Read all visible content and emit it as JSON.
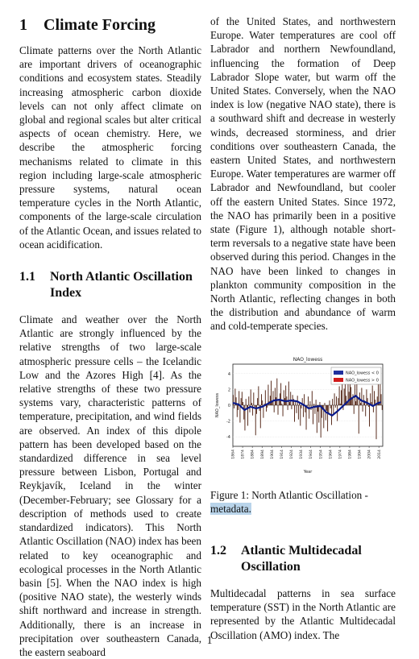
{
  "section": {
    "number": "1",
    "title": "Climate Forcing"
  },
  "left_intro": "Climate patterns over the North Atlantic are important drivers of oceanographic conditions and ecosystem states. Steadily increasing atmospheric carbon dioxide levels can not only affect climate on global and regional scales but alter critical aspects of ocean chemistry. Here, we describe the atmospheric forcing mechanisms related to climate in this region including large-scale atmospheric pressure systems, natural ocean temperature cycles in the North Atlantic, components of the large-scale circulation of the Atlantic Ocean, and issues related to ocean acidification.",
  "subsection_1": {
    "number": "1.1",
    "title": "North Atlantic Oscillation Index"
  },
  "left_body": "Climate and weather over the North Atlantic are strongly influenced by the relative strengths of two large-scale atmospheric pressure cells – the Icelandic Low and the Azores High [4]. As the relative strengths of these two pressure systems vary, characteristic patterns of temperature, precipitation, and wind fields are observed. An index of this dipole pattern has been developed based on the standardized difference in sea level pressure between Lisbon, Portugal and Reykjavík, Iceland in the winter (December-February; see Glossary for a description of methods used to create standardized indicators). This North Atlantic Oscillation (NAO) index has been related to key oceanographic and ecological processes in the North Atlantic basin [5]. When the NAO index is high (positive NAO state), the westerly winds shift northward and increase in strength. Additionally, there is an increase in precipitation over southeastern Canada, the eastern seaboard",
  "right_body": "of the United States, and northwestern Europe. Water temperatures are cool off Labrador and northern Newfoundland, influencing the formation of Deep Labrador Slope water, but warm off the United States. Conversely, when the NAO index is low (negative NAO state), there is a southward shift and decrease in westerly winds, decreased storminess, and drier conditions over southeastern Canada, the eastern United States, and northwestern Europe. Water temperatures are warmer off Labrador and Newfoundland, but cooler off the eastern United States. Since 1972, the NAO has primarily been in a positive state (Figure 1), although notable short-term reversals to a negative state have been observed during this period. Changes in the NAO have been linked to changes in plankton community composition in the North Atlantic, reflecting changes in both the distribution and abundance of warm and cold-temperate species.",
  "figure": {
    "caption_prefix": "Figure 1: North Atlantic Oscillation - ",
    "caption_highlight": "metadata."
  },
  "subsection_2": {
    "number": "1.2",
    "title": "Atlantic Multidecadal Oscillation"
  },
  "right_tail": "Multidecadal patterns in sea surface temperature (SST) in the North Atlantic are represented by the Atlantic Multidecadal Oscillation (AMO) index. The",
  "page_number": "1",
  "chart_data": {
    "type": "bar",
    "title": "NAO_lowess",
    "xlabel": "Year",
    "ylabel": "NAO_lowess",
    "xlim": [
      1864,
      2018
    ],
    "ylim": [
      -5.2,
      5.2
    ],
    "yticks": [
      -4,
      -2,
      0,
      2,
      4
    ],
    "xticks": [
      1864,
      1874,
      1884,
      1894,
      1904,
      1914,
      1924,
      1934,
      1944,
      1954,
      1964,
      1974,
      1984,
      1994,
      2004,
      2014
    ],
    "legend_position": "top-right",
    "colors": {
      "bars": "#4a1a0a",
      "lowess_negative": "#1f2f9e",
      "lowess_positive": "#d01a1a",
      "lowess_curve": "#0a1a8a"
    },
    "series": [
      {
        "name": "NAO_lowess < 0"
      },
      {
        "name": "NAO_lowess > 0"
      }
    ],
    "lowess_curve": [
      [
        1864,
        0.3
      ],
      [
        1870,
        0.1
      ],
      [
        1876,
        -0.6
      ],
      [
        1882,
        -0.2
      ],
      [
        1888,
        -0.4
      ],
      [
        1894,
        -0.2
      ],
      [
        1900,
        0.2
      ],
      [
        1906,
        0.6
      ],
      [
        1912,
        0.7
      ],
      [
        1918,
        0.5
      ],
      [
        1924,
        0.6
      ],
      [
        1930,
        0.5
      ],
      [
        1936,
        0.1
      ],
      [
        1942,
        -0.4
      ],
      [
        1948,
        -0.2
      ],
      [
        1954,
        -0.1
      ],
      [
        1960,
        -0.9
      ],
      [
        1966,
        -1.3
      ],
      [
        1972,
        -0.7
      ],
      [
        1978,
        0.0
      ],
      [
        1984,
        0.7
      ],
      [
        1990,
        1.2
      ],
      [
        1996,
        0.6
      ],
      [
        2002,
        0.3
      ],
      [
        2008,
        -0.1
      ],
      [
        2012,
        0.2
      ],
      [
        2016,
        0.4
      ]
    ],
    "annual_values": [
      1.3,
      -0.4,
      2.1,
      1.0,
      -1.5,
      -0.6,
      1.8,
      -2.2,
      0.9,
      1.7,
      0.4,
      -1.8,
      -3.2,
      0.8,
      -0.5,
      -2.6,
      1.1,
      -0.9,
      2.0,
      0.3,
      -1.3,
      1.6,
      -0.2,
      -3.8,
      -1.1,
      0.9,
      2.4,
      -0.7,
      -2.9,
      1.4,
      0.6,
      -1.6,
      0.2,
      1.9,
      -0.8,
      -0.3,
      2.6,
      0.5,
      1.2,
      3.1,
      0.4,
      1.8,
      -0.9,
      2.2,
      1.0,
      3.4,
      -1.2,
      0.7,
      1.5,
      2.8,
      0.2,
      -1.4,
      1.9,
      0.9,
      2.5,
      1.1,
      -0.6,
      3.0,
      0.4,
      1.7,
      -0.5,
      1.3,
      0.8,
      -2.1,
      0.6,
      -1.0,
      1.2,
      -1.8,
      0.3,
      -2.6,
      -0.4,
      0.9,
      -1.5,
      1.4,
      -0.9,
      -3.1,
      -0.2,
      1.1,
      -1.7,
      0.5,
      -0.6,
      1.8,
      -2.4,
      0.2,
      -1.1,
      0.7,
      -3.5,
      -0.8,
      -2.2,
      0.4,
      -4.1,
      -1.6,
      -0.5,
      -2.9,
      0.3,
      -1.9,
      -0.7,
      -3.3,
      -1.0,
      0.6,
      -0.4,
      -2.5,
      0.8,
      -1.2,
      1.5,
      -0.3,
      1.1,
      -2.0,
      0.9,
      2.4,
      0.2,
      1.9,
      3.3,
      -0.6,
      2.1,
      4.6,
      1.2,
      0.4,
      2.8,
      1.7,
      3.9,
      2.3,
      0.8,
      1.4,
      -1.1,
      2.6,
      0.5,
      3.1,
      1.0,
      -3.6,
      1.6,
      0.3,
      2.2,
      -0.8,
      1.3,
      0.6,
      -1.4,
      2.0,
      0.9,
      -0.2,
      -2.7,
      1.5,
      0.4,
      2.5,
      -0.9,
      1.8,
      0.7,
      -4.3,
      1.1,
      2.9,
      0.2,
      3.6,
      1.4,
      -0.6
    ]
  }
}
